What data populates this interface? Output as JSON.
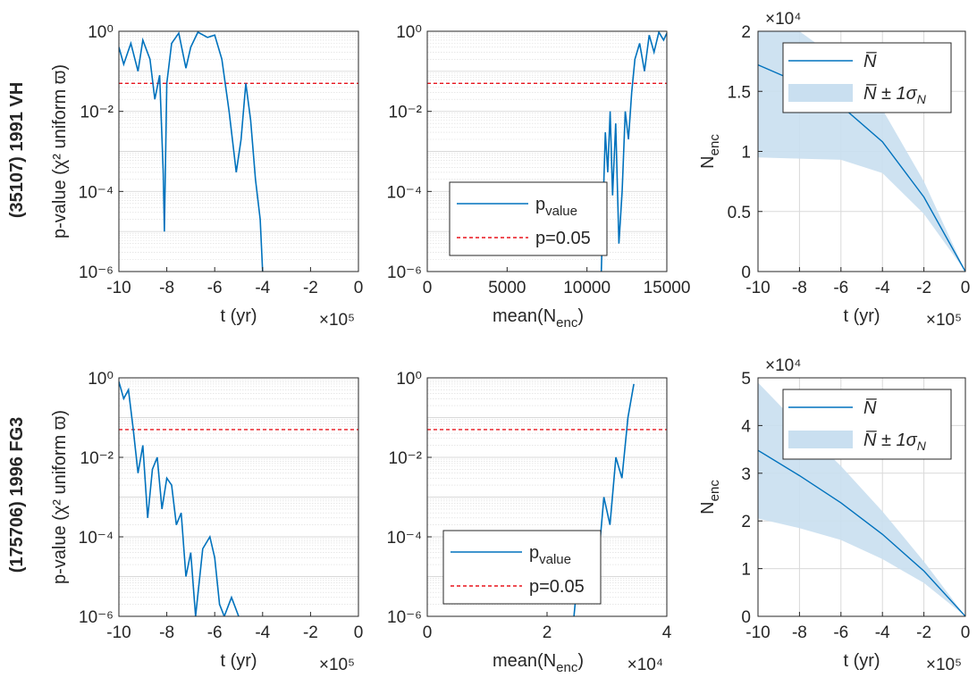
{
  "figure": {
    "rows": [
      {
        "title": "(35107) 1991 VH"
      },
      {
        "title": "(175706) 1996 FG3"
      }
    ]
  },
  "colors": {
    "series": "#0072BD",
    "band": "#c9dff0",
    "threshold": "#e8141c",
    "axis": "#262626",
    "grid": "#d9d9d9"
  },
  "legends": {
    "pvalue": {
      "line": "p",
      "line_sub": "value",
      "threshold": "p=0.05"
    },
    "nenc": {
      "mean": "N̅",
      "band_prefix": "N̅ ± 1",
      "band_sigma": "σ",
      "band_sub": "N"
    }
  },
  "chart_data": [
    {
      "id": "r1_t",
      "type": "line",
      "row": 0,
      "ylabel": "p-value (χ² uniform ϖ)",
      "xlabel": "t (yr)",
      "x_exponent": "×10⁵",
      "xlim": [
        -10,
        0
      ],
      "ylim": [
        1e-06,
        1
      ],
      "yscale": "log",
      "grid": "minor",
      "xticks": [
        -10,
        -8,
        -6,
        -4,
        -2,
        0
      ],
      "yticks": [
        "10⁻⁶",
        "10⁻⁴",
        "10⁻²",
        "10⁰"
      ],
      "threshold": 0.05,
      "series": [
        {
          "values": [
            [
              -10,
              0.4
            ],
            [
              -9.8,
              0.15
            ],
            [
              -9.5,
              0.5
            ],
            [
              -9.2,
              0.1
            ],
            [
              -9,
              0.6
            ],
            [
              -8.7,
              0.2
            ],
            [
              -8.5,
              0.02
            ],
            [
              -8.3,
              0.08
            ],
            [
              -8.15,
              0.0003
            ],
            [
              -8.1,
              1e-05
            ],
            [
              -8.0,
              0.05
            ],
            [
              -7.8,
              0.5
            ],
            [
              -7.5,
              0.9
            ],
            [
              -7.2,
              0.12
            ],
            [
              -7.0,
              0.4
            ],
            [
              -6.7,
              0.95
            ],
            [
              -6.3,
              0.7
            ],
            [
              -6.0,
              0.8
            ],
            [
              -5.7,
              0.2
            ],
            [
              -5.4,
              0.01
            ],
            [
              -5.1,
              0.0003
            ],
            [
              -4.9,
              0.002
            ],
            [
              -4.7,
              0.05
            ],
            [
              -4.5,
              0.006
            ],
            [
              -4.3,
              0.0002
            ],
            [
              -4.1,
              2e-05
            ],
            [
              -4.0,
              1e-06
            ]
          ]
        }
      ]
    },
    {
      "id": "r1_m",
      "type": "line",
      "row": 0,
      "xlabel": "mean(N",
      "xlabel_sub": "enc",
      "xlabel_end": ")",
      "x_exponent": "",
      "xlim": [
        0,
        15000
      ],
      "ylim": [
        1e-06,
        1
      ],
      "yscale": "log",
      "grid": "minor",
      "xticks": [
        0,
        5000,
        10000,
        15000
      ],
      "yticks": [
        "10⁻⁶",
        "10⁻⁴",
        "10⁻²",
        "10⁰"
      ],
      "threshold": 0.05,
      "series": [
        {
          "values": [
            [
              10900,
              1e-06
            ],
            [
              11000,
              3e-05
            ],
            [
              11150,
              0.003
            ],
            [
              11300,
              0.0003
            ],
            [
              11450,
              0.01
            ],
            [
              11600,
              8e-05
            ],
            [
              11800,
              0.005
            ],
            [
              12000,
              5e-06
            ],
            [
              12200,
              0.0001
            ],
            [
              12400,
              0.01
            ],
            [
              12600,
              0.002
            ],
            [
              12800,
              0.03
            ],
            [
              13000,
              0.2
            ],
            [
              13300,
              0.5
            ],
            [
              13600,
              0.1
            ],
            [
              13900,
              0.8
            ],
            [
              14200,
              0.3
            ],
            [
              14500,
              0.95
            ],
            [
              14800,
              0.6
            ],
            [
              15000,
              0.9
            ]
          ]
        }
      ]
    },
    {
      "id": "r1_n",
      "type": "area",
      "row": 0,
      "ylabel": "N",
      "ylabel_sub": "enc",
      "xlabel": "t (yr)",
      "x_exponent": "×10⁵",
      "y_exponent": "×10⁴",
      "xlim": [
        -10,
        0
      ],
      "ylim": [
        0,
        2
      ],
      "yscale": "linear",
      "grid": "major",
      "xticks": [
        -10,
        -8,
        -6,
        -4,
        -2,
        0
      ],
      "yticks": [
        0,
        0.5,
        1,
        1.5,
        2
      ],
      "x": [
        -10,
        -8,
        -6,
        -4,
        -2,
        0
      ],
      "mean": [
        1.72,
        1.57,
        1.38,
        1.08,
        0.62,
        0
      ],
      "upper": [
        2.3,
        2.0,
        1.75,
        1.35,
        0.75,
        0
      ],
      "lower": [
        0.95,
        0.94,
        0.93,
        0.82,
        0.48,
        0
      ]
    },
    {
      "id": "r2_t",
      "type": "line",
      "row": 1,
      "ylabel": "p-value (χ² uniform ϖ)",
      "xlabel": "t (yr)",
      "x_exponent": "×10⁵",
      "xlim": [
        -10,
        0
      ],
      "ylim": [
        1e-06,
        1
      ],
      "yscale": "log",
      "grid": "minor",
      "xticks": [
        -10,
        -8,
        -6,
        -4,
        -2,
        0
      ],
      "yticks": [
        "10⁻⁶",
        "10⁻⁴",
        "10⁻²",
        "10⁰"
      ],
      "threshold": 0.05,
      "series": [
        {
          "values": [
            [
              -10,
              0.8
            ],
            [
              -9.8,
              0.3
            ],
            [
              -9.6,
              0.5
            ],
            [
              -9.4,
              0.05
            ],
            [
              -9.2,
              0.004
            ],
            [
              -9.0,
              0.02
            ],
            [
              -8.8,
              0.0003
            ],
            [
              -8.6,
              0.005
            ],
            [
              -8.4,
              0.01
            ],
            [
              -8.2,
              0.0005
            ],
            [
              -8.0,
              0.003
            ],
            [
              -7.8,
              0.002
            ],
            [
              -7.6,
              0.0002
            ],
            [
              -7.4,
              0.0004
            ],
            [
              -7.2,
              1e-05
            ],
            [
              -7.0,
              4e-05
            ],
            [
              -6.8,
              1e-06
            ],
            [
              -6.5,
              5e-05
            ],
            [
              -6.2,
              0.0001
            ],
            [
              -6.0,
              3e-05
            ],
            [
              -5.8,
              2e-06
            ],
            [
              -5.6,
              1e-06
            ],
            [
              -5.3,
              3e-06
            ],
            [
              -5.0,
              1e-06
            ]
          ]
        }
      ]
    },
    {
      "id": "r2_m",
      "type": "line",
      "row": 1,
      "xlabel": "mean(N",
      "xlabel_sub": "enc",
      "xlabel_end": ")",
      "x_exponent": "×10⁴",
      "xlim": [
        0,
        4
      ],
      "ylim": [
        1e-06,
        1
      ],
      "yscale": "log",
      "grid": "minor",
      "xticks": [
        0,
        2,
        4
      ],
      "yticks": [
        "10⁻⁶",
        "10⁻⁴",
        "10⁻²",
        "10⁰"
      ],
      "threshold": 0.05,
      "series": [
        {
          "values": [
            [
              2.45,
              1e-06
            ],
            [
              2.55,
              4e-05
            ],
            [
              2.65,
              3e-06
            ],
            [
              2.75,
              0.0001
            ],
            [
              2.85,
              2e-05
            ],
            [
              2.95,
              0.001
            ],
            [
              3.05,
              0.0002
            ],
            [
              3.15,
              0.01
            ],
            [
              3.25,
              0.003
            ],
            [
              3.35,
              0.1
            ],
            [
              3.45,
              0.7
            ]
          ]
        }
      ]
    },
    {
      "id": "r2_n",
      "type": "area",
      "row": 1,
      "ylabel": "N",
      "ylabel_sub": "enc",
      "xlabel": "t (yr)",
      "x_exponent": "×10⁵",
      "y_exponent": "×10⁴",
      "xlim": [
        -10,
        0
      ],
      "ylim": [
        0,
        5
      ],
      "yscale": "linear",
      "grid": "major",
      "xticks": [
        -10,
        -8,
        -6,
        -4,
        -2,
        0
      ],
      "yticks": [
        0,
        1,
        2,
        3,
        4,
        5
      ],
      "x": [
        -10,
        -8,
        -6,
        -4,
        -2,
        0
      ],
      "mean": [
        3.48,
        2.95,
        2.38,
        1.72,
        0.95,
        0
      ],
      "upper": [
        4.9,
        4.0,
        3.15,
        2.2,
        1.15,
        0
      ],
      "lower": [
        2.05,
        1.85,
        1.6,
        1.2,
        0.7,
        0
      ]
    }
  ]
}
